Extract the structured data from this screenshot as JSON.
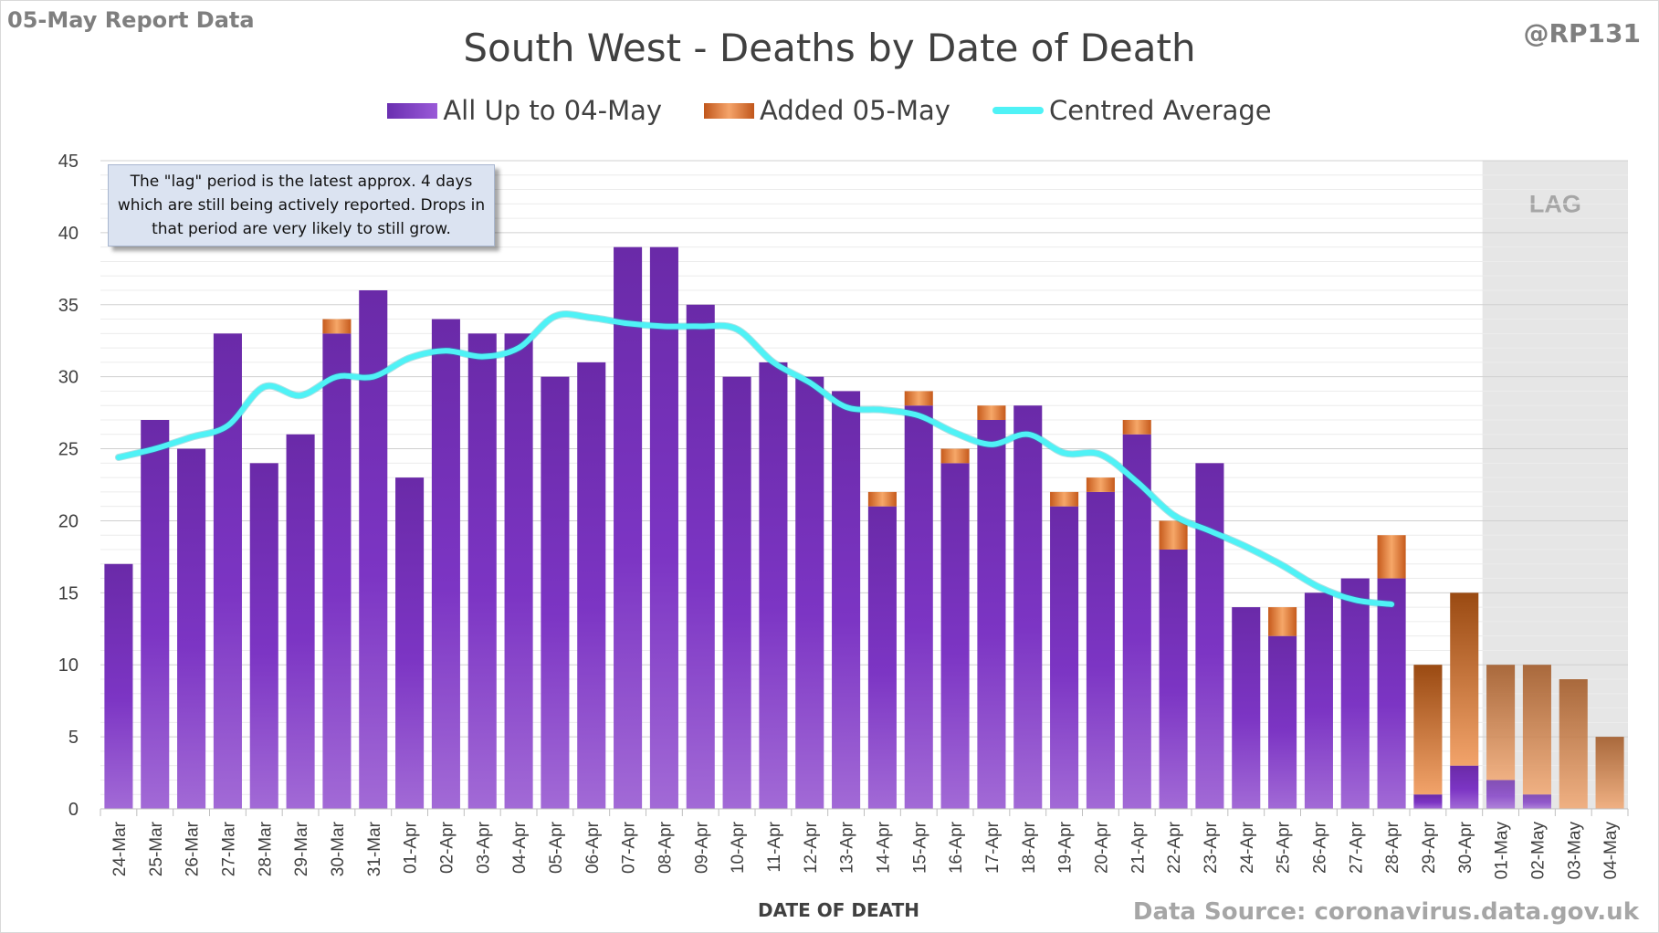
{
  "report_label": "05-May Report Data",
  "handle": "@RP131",
  "source": "Data Source: coronavirus.data.gov.uk",
  "note": "The \"lag\" period is the latest approx. 4 days which are still being actively reported.  Drops in that period are very likely to still grow.",
  "colors": {
    "purple": "#7434bd",
    "orange": "#e8843f",
    "average": "#4ff2f6",
    "lag_shade": "#e6e6e6"
  },
  "chart_data": {
    "type": "bar",
    "title": "South West - Deaths by Date of Death",
    "xlabel": "DATE OF DEATH",
    "ylabel": "",
    "ylim": [
      0,
      45
    ],
    "yticks": [
      0,
      5,
      10,
      15,
      20,
      25,
      30,
      35,
      40,
      45
    ],
    "grid": true,
    "legend_position": "top",
    "stacked": true,
    "lag_label": "LAG",
    "lag_categories": [
      "01-May",
      "02-May",
      "03-May",
      "04-May"
    ],
    "categories": [
      "24-Mar",
      "25-Mar",
      "26-Mar",
      "27-Mar",
      "28-Mar",
      "29-Mar",
      "30-Mar",
      "31-Mar",
      "01-Apr",
      "02-Apr",
      "03-Apr",
      "04-Apr",
      "05-Apr",
      "06-Apr",
      "07-Apr",
      "08-Apr",
      "09-Apr",
      "10-Apr",
      "11-Apr",
      "12-Apr",
      "13-Apr",
      "14-Apr",
      "15-Apr",
      "16-Apr",
      "17-Apr",
      "18-Apr",
      "19-Apr",
      "20-Apr",
      "21-Apr",
      "22-Apr",
      "23-Apr",
      "24-Apr",
      "25-Apr",
      "26-Apr",
      "27-Apr",
      "28-Apr",
      "29-Apr",
      "30-Apr",
      "01-May",
      "02-May",
      "03-May",
      "04-May"
    ],
    "series": [
      {
        "name": "All Up to 04-May",
        "kind": "bar",
        "values": [
          17,
          27,
          25,
          33,
          24,
          26,
          33,
          36,
          23,
          34,
          33,
          33,
          30,
          31,
          39,
          39,
          35,
          30,
          31,
          30,
          29,
          21,
          28,
          24,
          27,
          28,
          21,
          22,
          26,
          18,
          24,
          14,
          12,
          15,
          16,
          16,
          1,
          3,
          2,
          1,
          0,
          0
        ]
      },
      {
        "name": "Added 05-May",
        "kind": "bar",
        "values": [
          0,
          0,
          0,
          0,
          0,
          0,
          1,
          0,
          0,
          0,
          0,
          0,
          0,
          0,
          0,
          0,
          0,
          0,
          0,
          0,
          0,
          1,
          1,
          1,
          1,
          0,
          1,
          1,
          1,
          2,
          0,
          0,
          2,
          0,
          0,
          3,
          9,
          12,
          8,
          9,
          9,
          5
        ]
      },
      {
        "name": "Centred Average",
        "kind": "line",
        "values": [
          24.4,
          25.0,
          25.8,
          26.6,
          29.3,
          28.7,
          30.0,
          30.0,
          31.3,
          31.8,
          31.4,
          32.0,
          34.2,
          34.1,
          33.7,
          33.5,
          33.5,
          33.3,
          31.0,
          29.6,
          27.9,
          27.7,
          27.3,
          26.1,
          25.3,
          26.0,
          24.7,
          24.6,
          22.7,
          20.4,
          19.3,
          18.2,
          16.9,
          15.4,
          14.5,
          14.2,
          null,
          null,
          null,
          null,
          null,
          null
        ]
      }
    ]
  }
}
